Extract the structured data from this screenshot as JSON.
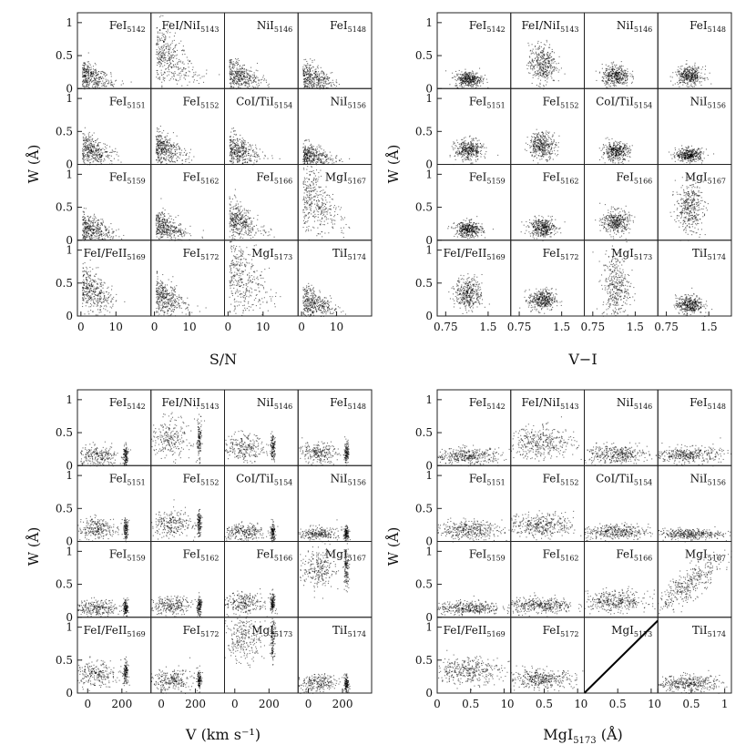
{
  "figure": {
    "quadrants": [
      {
        "id": "sn",
        "xlabel": "S/N",
        "ylabel": "W (Å)",
        "xticks": [
          "0",
          "10"
        ],
        "xtick_values": [
          0,
          10
        ],
        "xlim": [
          -1,
          20
        ],
        "yticks": [
          "0",
          "0.5",
          "1"
        ]
      },
      {
        "id": "vi",
        "xlabel": "V−I",
        "ylabel": "W (Å)",
        "xticks": [
          "0.75",
          "1.5"
        ],
        "xtick_values": [
          0.75,
          1.5
        ],
        "xlim": [
          0.6,
          1.9
        ],
        "yticks": [
          "0",
          "0.5",
          "1"
        ]
      },
      {
        "id": "vel",
        "xlabel": "V (km s⁻¹)",
        "ylabel": "W (Å)",
        "xticks": [
          "0",
          "200"
        ],
        "xtick_values": [
          0,
          200
        ],
        "xlim": [
          -60,
          370
        ],
        "yticks": [
          "0",
          "0.5",
          "1"
        ]
      },
      {
        "id": "mg",
        "xlabel": "MgI5173 (Å)",
        "ylabel": "W (Å)",
        "xticks": [
          "0",
          "0.5",
          "1"
        ],
        "xtick_values": [
          0,
          0.5,
          1
        ],
        "xlim": [
          0,
          1.1
        ],
        "yticks": [
          "0",
          "0.5",
          "1"
        ]
      }
    ],
    "panel_labels": [
      {
        "name": "FeI",
        "sub": "5142"
      },
      {
        "name": "FeI/NiI",
        "sub": "5143"
      },
      {
        "name": "NiI",
        "sub": "5146"
      },
      {
        "name": "FeI",
        "sub": "5148"
      },
      {
        "name": "FeI",
        "sub": "5151"
      },
      {
        "name": "FeI",
        "sub": "5152"
      },
      {
        "name": "CoI/TiI",
        "sub": "5154"
      },
      {
        "name": "NiI",
        "sub": "5156"
      },
      {
        "name": "FeI",
        "sub": "5159"
      },
      {
        "name": "FeI",
        "sub": "5162"
      },
      {
        "name": "FeI",
        "sub": "5166"
      },
      {
        "name": "MgI",
        "sub": "5167"
      },
      {
        "name": "FeI/FeII",
        "sub": "5169"
      },
      {
        "name": "FeI",
        "sub": "5172"
      },
      {
        "name": "MgI",
        "sub": "5173"
      },
      {
        "name": "TiI",
        "sub": "5174"
      }
    ]
  },
  "chart_data": [
    {
      "type": "scatter",
      "title": "",
      "xlabel": "S/N",
      "ylabel": "W (Å)",
      "xlim": [
        -1,
        20
      ],
      "ylim": [
        0,
        1.15
      ],
      "grid": false,
      "layout": "4x4 panels, shared axes",
      "panels": [
        "FeI5142",
        "FeI/NiI5143",
        "NiI5146",
        "FeI5148",
        "FeI5151",
        "FeI5152",
        "CoI/TiI5154",
        "NiI5156",
        "FeI5159",
        "FeI5162",
        "FeI5166",
        "MgI5167",
        "FeI/FeII5169",
        "FeI5172",
        "MgI5173",
        "TiI5174"
      ],
      "clusters": [
        {
          "cx": 2,
          "cy": 0.12,
          "sx": 2.5,
          "sy": 0.1
        },
        {
          "cx": 3,
          "cy": 0.35,
          "sx": 3,
          "sy": 0.2
        },
        {
          "cx": 2,
          "cy": 0.15,
          "sx": 2.5,
          "sy": 0.1
        },
        {
          "cx": 2,
          "cy": 0.12,
          "sx": 2.5,
          "sy": 0.1
        },
        {
          "cx": 2,
          "cy": 0.15,
          "sx": 2.5,
          "sy": 0.1
        },
        {
          "cx": 2,
          "cy": 0.18,
          "sx": 2.5,
          "sy": 0.1
        },
        {
          "cx": 2,
          "cy": 0.15,
          "sx": 2.5,
          "sy": 0.1
        },
        {
          "cx": 2,
          "cy": 0.1,
          "sx": 2.5,
          "sy": 0.08
        },
        {
          "cx": 2,
          "cy": 0.12,
          "sx": 2.5,
          "sy": 0.1
        },
        {
          "cx": 2,
          "cy": 0.15,
          "sx": 2.5,
          "sy": 0.1
        },
        {
          "cx": 2.5,
          "cy": 0.22,
          "sx": 2.5,
          "sy": 0.12
        },
        {
          "cx": 3,
          "cy": 0.45,
          "sx": 3,
          "sy": 0.25
        },
        {
          "cx": 2.5,
          "cy": 0.28,
          "sx": 2.5,
          "sy": 0.15
        },
        {
          "cx": 2.5,
          "cy": 0.2,
          "sx": 2.5,
          "sy": 0.12
        },
        {
          "cx": 3,
          "cy": 0.45,
          "sx": 3,
          "sy": 0.3
        },
        {
          "cx": 2.5,
          "cy": 0.15,
          "sx": 2.5,
          "sy": 0.1
        }
      ]
    },
    {
      "type": "scatter",
      "title": "",
      "xlabel": "V−I",
      "ylabel": "W (Å)",
      "xlim": [
        0.6,
        1.9
      ],
      "ylim": [
        0,
        1.15
      ],
      "grid": false,
      "layout": "4x4 panels, shared axes",
      "panels": [
        "FeI5142",
        "FeI/NiI5143",
        "NiI5146",
        "FeI5148",
        "FeI5151",
        "FeI5152",
        "CoI/TiI5154",
        "NiI5156",
        "FeI5159",
        "FeI5162",
        "FeI5166",
        "MgI5167",
        "FeI/FeII5169",
        "FeI5172",
        "MgI5173",
        "TiI5174"
      ],
      "clusters": [
        {
          "cx": 1.15,
          "cy": 0.15,
          "sx": 0.12,
          "sy": 0.06
        },
        {
          "cx": 1.15,
          "cy": 0.38,
          "sx": 0.12,
          "sy": 0.15
        },
        {
          "cx": 1.15,
          "cy": 0.2,
          "sx": 0.12,
          "sy": 0.08
        },
        {
          "cx": 1.15,
          "cy": 0.2,
          "sx": 0.12,
          "sy": 0.07
        },
        {
          "cx": 1.15,
          "cy": 0.22,
          "sx": 0.12,
          "sy": 0.08
        },
        {
          "cx": 1.15,
          "cy": 0.3,
          "sx": 0.12,
          "sy": 0.1
        },
        {
          "cx": 1.15,
          "cy": 0.2,
          "sx": 0.12,
          "sy": 0.07
        },
        {
          "cx": 1.15,
          "cy": 0.15,
          "sx": 0.12,
          "sy": 0.05
        },
        {
          "cx": 1.15,
          "cy": 0.17,
          "sx": 0.12,
          "sy": 0.06
        },
        {
          "cx": 1.15,
          "cy": 0.2,
          "sx": 0.12,
          "sy": 0.07
        },
        {
          "cx": 1.15,
          "cy": 0.28,
          "sx": 0.12,
          "sy": 0.09
        },
        {
          "cx": 1.15,
          "cy": 0.5,
          "sx": 0.12,
          "sy": 0.18
        },
        {
          "cx": 1.15,
          "cy": 0.35,
          "sx": 0.12,
          "sy": 0.12
        },
        {
          "cx": 1.15,
          "cy": 0.25,
          "sx": 0.12,
          "sy": 0.08
        },
        {
          "cx": 1.15,
          "cy": 0.45,
          "sx": 0.12,
          "sy": 0.25
        },
        {
          "cx": 1.15,
          "cy": 0.18,
          "sx": 0.12,
          "sy": 0.07
        }
      ]
    },
    {
      "type": "scatter",
      "title": "",
      "xlabel": "V (km s⁻¹)",
      "ylabel": "W (Å)",
      "xlim": [
        -60,
        370
      ],
      "ylim": [
        0,
        1.15
      ],
      "grid": false,
      "layout": "4x4 panels, shared axes; broad cloud near V≈50 plus narrow column near V≈220",
      "panels": [
        "FeI5142",
        "FeI/NiI5143",
        "NiI5146",
        "FeI5148",
        "FeI5151",
        "FeI5152",
        "CoI/TiI5154",
        "NiI5156",
        "FeI5159",
        "FeI5162",
        "FeI5166",
        "MgI5167",
        "FeI/FeII5169",
        "FeI5172",
        "MgI5173",
        "TiI5174"
      ],
      "clusters": [
        {
          "cx": 50,
          "cy": 0.15,
          "sx": 60,
          "sy": 0.08
        },
        {
          "cx": 50,
          "cy": 0.4,
          "sx": 60,
          "sy": 0.15
        },
        {
          "cx": 50,
          "cy": 0.28,
          "sx": 60,
          "sy": 0.1
        },
        {
          "cx": 50,
          "cy": 0.2,
          "sx": 60,
          "sy": 0.08
        },
        {
          "cx": 50,
          "cy": 0.2,
          "sx": 60,
          "sy": 0.08
        },
        {
          "cx": 50,
          "cy": 0.28,
          "sx": 60,
          "sy": 0.1
        },
        {
          "cx": 50,
          "cy": 0.15,
          "sx": 60,
          "sy": 0.07
        },
        {
          "cx": 50,
          "cy": 0.12,
          "sx": 60,
          "sy": 0.05
        },
        {
          "cx": 50,
          "cy": 0.15,
          "sx": 60,
          "sy": 0.06
        },
        {
          "cx": 50,
          "cy": 0.18,
          "sx": 60,
          "sy": 0.07
        },
        {
          "cx": 50,
          "cy": 0.22,
          "sx": 60,
          "sy": 0.08
        },
        {
          "cx": 50,
          "cy": 0.75,
          "sx": 50,
          "sy": 0.15
        },
        {
          "cx": 50,
          "cy": 0.3,
          "sx": 60,
          "sy": 0.1
        },
        {
          "cx": 50,
          "cy": 0.2,
          "sx": 60,
          "sy": 0.08
        },
        {
          "cx": 50,
          "cy": 0.85,
          "sx": 50,
          "sy": 0.18
        },
        {
          "cx": 50,
          "cy": 0.15,
          "sx": 60,
          "sy": 0.07
        }
      ]
    },
    {
      "type": "scatter",
      "title": "",
      "xlabel": "MgI5173 (Å)",
      "ylabel": "W (Å)",
      "xlim": [
        0,
        1.1
      ],
      "ylim": [
        0,
        1.15
      ],
      "grid": false,
      "layout": "4x4 panels, shared axes; MgI5173 panel shows identity line y=x",
      "panels": [
        "FeI5142",
        "FeI/NiI5143",
        "NiI5146",
        "FeI5148",
        "FeI5151",
        "FeI5152",
        "CoI/TiI5154",
        "NiI5156",
        "FeI5159",
        "FeI5162",
        "FeI5166",
        "MgI5167",
        "FeI/FeII5169",
        "FeI5172",
        "MgI5173",
        "TiI5174"
      ],
      "clusters": [
        {
          "cx": 0.45,
          "cy": 0.15,
          "sx": 0.25,
          "sy": 0.06
        },
        {
          "cx": 0.45,
          "cy": 0.35,
          "sx": 0.25,
          "sy": 0.12
        },
        {
          "cx": 0.45,
          "cy": 0.18,
          "sx": 0.25,
          "sy": 0.07
        },
        {
          "cx": 0.45,
          "cy": 0.17,
          "sx": 0.25,
          "sy": 0.06
        },
        {
          "cx": 0.45,
          "cy": 0.18,
          "sx": 0.25,
          "sy": 0.07
        },
        {
          "cx": 0.45,
          "cy": 0.25,
          "sx": 0.25,
          "sy": 0.09
        },
        {
          "cx": 0.45,
          "cy": 0.15,
          "sx": 0.25,
          "sy": 0.06
        },
        {
          "cx": 0.45,
          "cy": 0.12,
          "sx": 0.25,
          "sy": 0.04
        },
        {
          "cx": 0.45,
          "cy": 0.15,
          "sx": 0.25,
          "sy": 0.05
        },
        {
          "cx": 0.45,
          "cy": 0.18,
          "sx": 0.25,
          "sy": 0.06
        },
        {
          "cx": 0.45,
          "cy": 0.25,
          "sx": 0.25,
          "sy": 0.08
        },
        {
          "cx": 0.45,
          "cy": 0.5,
          "sx": 0.25,
          "sy": 0.12,
          "slope": 0.7
        },
        {
          "cx": 0.45,
          "cy": 0.35,
          "sx": 0.25,
          "sy": 0.1
        },
        {
          "cx": 0.45,
          "cy": 0.22,
          "sx": 0.25,
          "sy": 0.07
        },
        {
          "cx": 0.45,
          "cy": 0.45,
          "sx": 0.25,
          "sy": 0.2,
          "identity": true
        },
        {
          "cx": 0.45,
          "cy": 0.15,
          "sx": 0.25,
          "sy": 0.06
        }
      ]
    }
  ]
}
